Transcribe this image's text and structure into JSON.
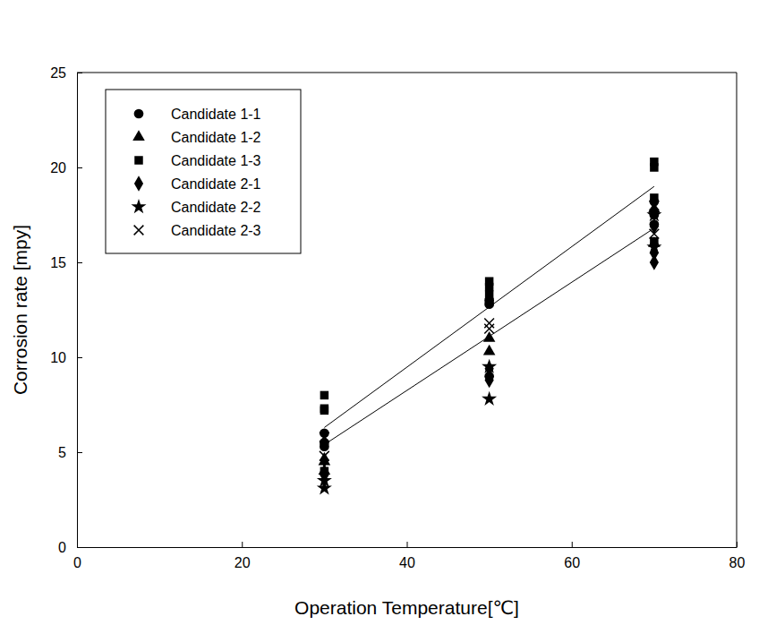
{
  "chart_data": {
    "type": "scatter",
    "x_label": "Operation Temperature[℃]",
    "y_label": "Corrosion rate [mpy]",
    "xlim": [
      0,
      80
    ],
    "xticks": [
      0,
      20,
      40,
      60,
      80
    ],
    "ylim": [
      0,
      25
    ],
    "yticks": [
      0,
      5,
      10,
      15,
      20,
      25
    ],
    "legend": "upper left",
    "series": [
      {
        "name": "Candidate 1-1",
        "marker": "circle",
        "color": "#000000",
        "x": [
          30,
          30,
          30,
          50,
          50,
          50,
          70,
          70,
          70
        ],
        "values": [
          5.3,
          6.0,
          5.5,
          9.0,
          12.8,
          13.0,
          17.5,
          18.2,
          17.0
        ]
      },
      {
        "name": "Candidate 1-2",
        "marker": "triangle",
        "color": "#000000",
        "x": [
          30,
          30,
          50,
          50,
          70,
          70
        ],
        "values": [
          4.5,
          4.0,
          10.3,
          11.0,
          16.0,
          17.8
        ]
      },
      {
        "name": "Candidate 1-3",
        "marker": "square",
        "color": "#000000",
        "x": [
          30,
          30,
          30,
          30,
          50,
          50,
          50,
          50,
          70,
          70,
          70,
          70
        ],
        "values": [
          8.0,
          7.3,
          7.2,
          4.0,
          14.0,
          13.7,
          13.3,
          12.9,
          20.3,
          20.0,
          18.4,
          16.1
        ]
      },
      {
        "name": "Candidate 2-1",
        "marker": "diamond",
        "color": "#000000",
        "x": [
          30,
          30,
          50,
          50,
          70,
          70,
          70
        ],
        "values": [
          3.8,
          4.6,
          8.8,
          9.4,
          15.0,
          15.5,
          16.9
        ]
      },
      {
        "name": "Candidate 2-2",
        "marker": "star",
        "color": "#000000",
        "x": [
          30,
          30,
          50,
          50,
          70,
          70
        ],
        "values": [
          3.1,
          3.5,
          7.8,
          9.5,
          15.8,
          17.5
        ]
      },
      {
        "name": "Candidate 2-3",
        "marker": "x",
        "color": "#000000",
        "x": [
          30,
          30,
          50,
          50,
          70,
          70
        ],
        "values": [
          5.8,
          4.8,
          11.8,
          11.5,
          18.0,
          16.5
        ]
      },
      {
        "type": "line",
        "line_style": "solid",
        "color": "#000000",
        "x": [
          30,
          70
        ],
        "values": [
          6.3,
          19.0
        ]
      },
      {
        "type": "line",
        "line_style": "solid",
        "color": "#000000",
        "x": [
          30,
          70
        ],
        "values": [
          5.4,
          16.8
        ]
      }
    ]
  }
}
